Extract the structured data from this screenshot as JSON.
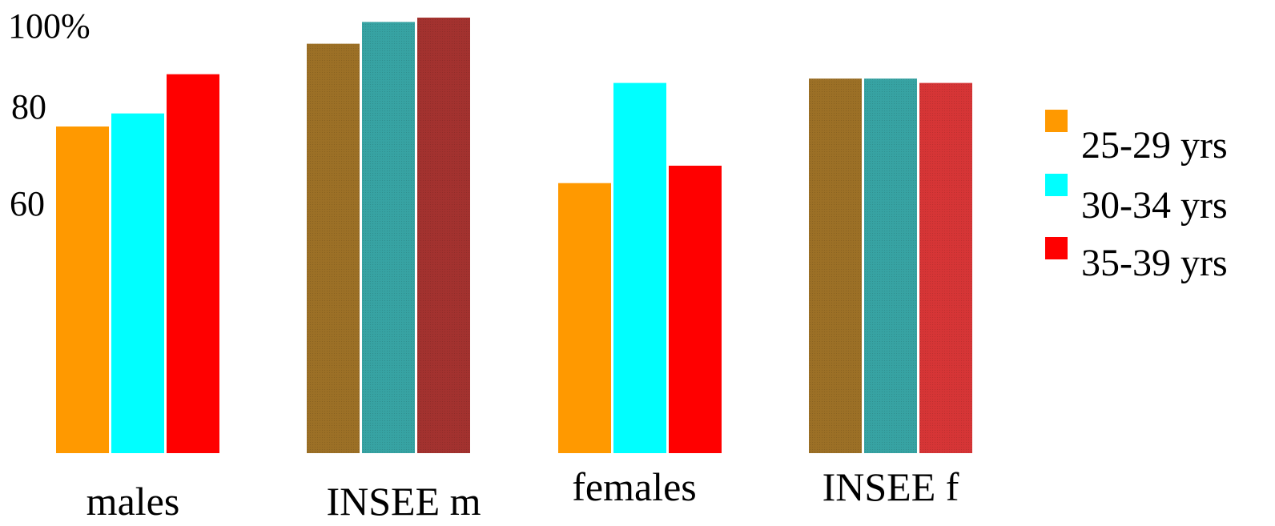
{
  "chart_data": {
    "type": "bar",
    "categories": [
      "males",
      "INSEE m",
      "females",
      "INSEE f"
    ],
    "series": [
      {
        "name": "25-29 yrs",
        "values": [
          75,
          94,
          62,
          86
        ]
      },
      {
        "name": "30-34 yrs",
        "values": [
          78,
          99,
          85,
          86
        ]
      },
      {
        "name": "35-39 yrs",
        "values": [
          87,
          100,
          66,
          85
        ]
      }
    ],
    "y_ticks": [
      "60",
      "80",
      "100%"
    ],
    "ylim": [
      0,
      100
    ],
    "legend_position": "right",
    "grid": false,
    "colors": {
      "solid": [
        "#ff9900",
        "#00ffff",
        "#ff0000"
      ],
      "reference": [
        "#9c7026",
        "#37a3a3",
        "#a3322f"
      ],
      "reference_alt": [
        "#9c7026",
        "#37a3a3",
        "#d63536"
      ]
    }
  }
}
